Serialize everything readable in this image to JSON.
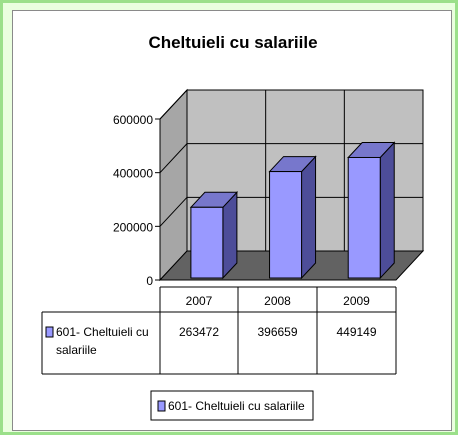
{
  "chart_data": {
    "type": "bar",
    "title": "Cheltuieli cu salariile",
    "categories": [
      "2007",
      "2008",
      "2009"
    ],
    "series": [
      {
        "name": "601- Cheltuieli cu salariile",
        "values": [
          263472,
          396659,
          449149
        ],
        "value_labels": [
          "263472",
          "396659",
          "449149"
        ]
      }
    ],
    "series_label_lines": [
      "601- Cheltuieli cu",
      "salariile"
    ],
    "y_ticks": [
      "0",
      "200000",
      "400000",
      "600000"
    ],
    "y_tick_values": [
      0,
      200000,
      400000,
      600000
    ],
    "ylim": [
      0,
      600000
    ],
    "legend_label": "601- Cheltuieli cu salariile",
    "legend_position": "bottom",
    "grid": true,
    "data_table": true,
    "colors": {
      "bar_front": "#9999ff",
      "bar_side": "#4d4d99",
      "bar_top": "#7777cc",
      "back_wall": "#c0c0c0",
      "side_wall": "#a6a6a6",
      "floor": "#626262",
      "frame_border": "#9be08a",
      "frame_background": "#eaffdf"
    }
  }
}
